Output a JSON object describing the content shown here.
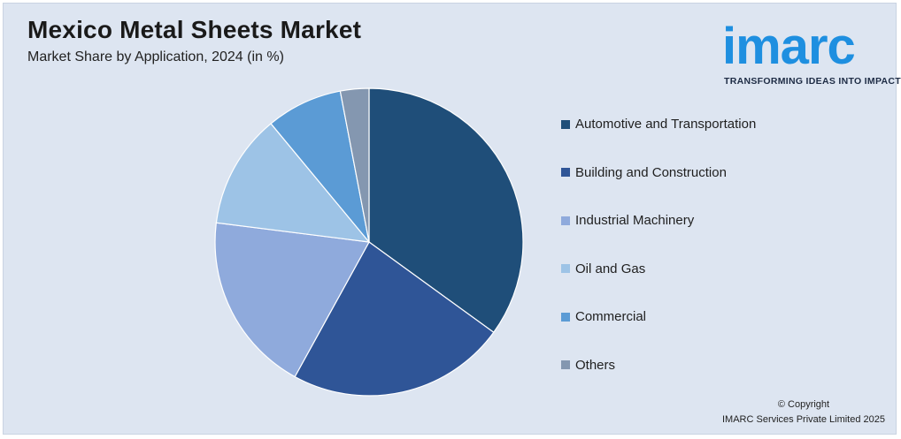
{
  "header": {
    "title": "Mexico Metal Sheets Market",
    "subtitle": "Market Share by Application, 2024 (in %)"
  },
  "logo": {
    "wordmark": "imarc",
    "tagline": "TRANSFORMING IDEAS INTO IMPACT",
    "color": "#1e8fe0"
  },
  "footer": {
    "copyright": "© Copyright",
    "company": "IMARC Services Private Limited 2025"
  },
  "chart_data": {
    "type": "pie",
    "title": "Mexico Metal Sheets Market",
    "subtitle": "Market Share by Application, 2024 (in %)",
    "legend_position": "right",
    "slices": [
      {
        "label": "Automotive and Transportation",
        "value": 35,
        "color": "#1f4e79"
      },
      {
        "label": "Building and Construction",
        "value": 23,
        "color": "#2f5597"
      },
      {
        "label": "Industrial Machinery",
        "value": 19,
        "color": "#8faadc"
      },
      {
        "label": "Oil and Gas",
        "value": 12,
        "color": "#9dc3e6"
      },
      {
        "label": "Commercial",
        "value": 8,
        "color": "#5b9bd5"
      },
      {
        "label": "Others",
        "value": 3,
        "color": "#8497b0"
      }
    ]
  }
}
